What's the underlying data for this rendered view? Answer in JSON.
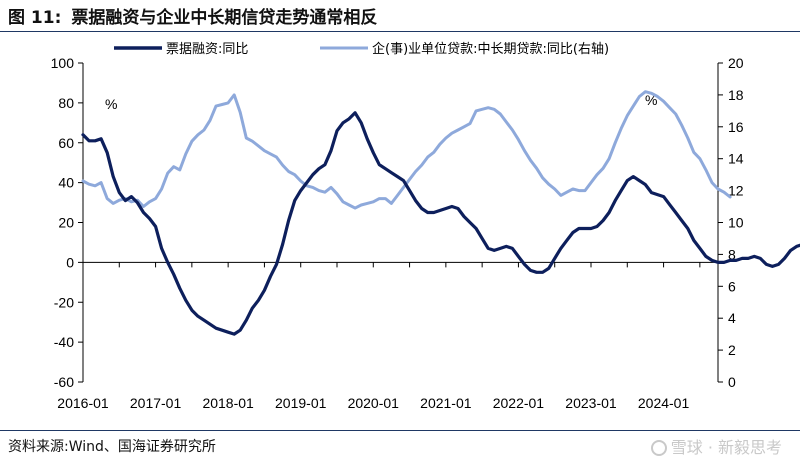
{
  "header": {
    "figure_num": "图 11:",
    "title": "票据融资与企业中长期信贷走势通常相反"
  },
  "footer": {
    "source": "资料来源:Wind、国海证券研究所",
    "watermark": "雪球 · 新毅思考"
  },
  "chart_data": {
    "type": "line",
    "title": "票据融资与企业中长期信贷走势通常相反",
    "left_axis": {
      "ylim": [
        -60,
        100
      ],
      "ticks": [
        -60,
        -40,
        -20,
        0,
        20,
        40,
        60,
        80,
        100
      ],
      "unit_label": "%"
    },
    "right_axis": {
      "ylim": [
        0,
        20
      ],
      "ticks": [
        0,
        2,
        4,
        6,
        8,
        10,
        12,
        14,
        16,
        18,
        20
      ],
      "unit_label": "%"
    },
    "x_ticks": [
      "2016-01",
      "2017-01",
      "2018-01",
      "2019-01",
      "2020-01",
      "2021-01",
      "2022-01",
      "2023-01",
      "2024-01"
    ],
    "x_range": [
      "2016-01",
      "2024-10"
    ],
    "legend_position": "top",
    "colors": {
      "series1": "#0d1f5c",
      "series2": "#8ea9db"
    },
    "series": [
      {
        "name": "票据融资:同比",
        "axis": "left",
        "start": "2016-01",
        "values": [
          64,
          61,
          61,
          62,
          55,
          43,
          35,
          31,
          33,
          30,
          25,
          22,
          18,
          7,
          0,
          -6,
          -13,
          -19,
          -24,
          -27,
          -29,
          -31,
          -33,
          -34,
          -35,
          -36,
          -34,
          -29,
          -23,
          -19,
          -14,
          -7,
          -1,
          9,
          21,
          31,
          36,
          40,
          44,
          47,
          49,
          56,
          66,
          70,
          72,
          75,
          70,
          62,
          55,
          49,
          47,
          45,
          43,
          41,
          36,
          31,
          27,
          25,
          25,
          26,
          27,
          28,
          27,
          23,
          20,
          17,
          12,
          7,
          6,
          7,
          8,
          7,
          3,
          -1,
          -4,
          -5,
          -5,
          -3,
          2,
          7,
          11,
          15,
          17,
          17,
          17,
          18,
          21,
          25,
          31,
          36,
          41,
          43,
          41,
          39,
          35,
          34,
          33,
          29,
          25,
          21,
          17,
          11,
          7,
          3,
          1,
          0,
          0,
          1,
          1,
          2,
          2,
          3,
          2,
          -1,
          -2,
          -1,
          2,
          6,
          8,
          9,
          10,
          11,
          12
        ]
      },
      {
        "name": "企(事)业单位贷款:中长期贷款:同比(右轴)",
        "axis": "right",
        "start": "2016-01",
        "values": [
          12.6,
          12.4,
          12.3,
          12.5,
          11.5,
          11.2,
          11.4,
          11.5,
          11.3,
          11.4,
          11.0,
          11.3,
          11.5,
          12.1,
          13.1,
          13.5,
          13.3,
          14.3,
          15.1,
          15.5,
          15.8,
          16.4,
          17.3,
          17.4,
          17.5,
          18.0,
          16.9,
          15.3,
          15.1,
          14.8,
          14.5,
          14.3,
          14.1,
          13.6,
          13.2,
          13.0,
          12.6,
          12.3,
          12.2,
          12.0,
          11.9,
          12.2,
          11.8,
          11.3,
          11.1,
          10.9,
          11.1,
          11.2,
          11.3,
          11.5,
          11.5,
          11.2,
          11.7,
          12.2,
          12.7,
          13.2,
          13.6,
          14.1,
          14.4,
          14.9,
          15.3,
          15.6,
          15.8,
          16.0,
          16.2,
          17.0,
          17.1,
          17.2,
          17.1,
          16.8,
          16.3,
          15.8,
          15.2,
          14.5,
          13.9,
          13.4,
          12.8,
          12.4,
          12.1,
          11.7,
          11.9,
          12.1,
          12.0,
          12.0,
          12.5,
          13.0,
          13.4,
          14.0,
          15.0,
          15.9,
          16.7,
          17.3,
          17.9,
          18.2,
          18.1,
          17.9,
          17.6,
          17.2,
          16.8,
          16.1,
          15.3,
          14.4,
          14.0,
          13.3,
          12.5,
          12.1,
          11.9,
          11.6
        ]
      }
    ]
  }
}
